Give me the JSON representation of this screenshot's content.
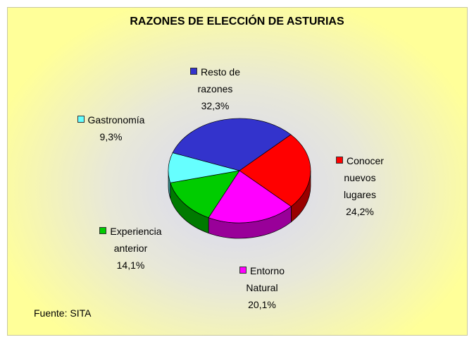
{
  "chart_data": {
    "type": "pie",
    "title": "RAZONES DE ELECCIÓN DE ASTURIAS",
    "categories": [
      "Resto de razones",
      "Conocer nuevos lugares",
      "Entorno Natural",
      "Experiencia anterior",
      "Gastronomía"
    ],
    "values": [
      32.3,
      24.2,
      20.1,
      14.1,
      9.3
    ],
    "value_labels": [
      "32,3%",
      "24,2%",
      "20,1%",
      "14,1%",
      "9,3%"
    ],
    "colors": [
      "#3333cc",
      "#ff0000",
      "#ff00ff",
      "#00cc00",
      "#66ffff"
    ],
    "source": "Fuente: SITA"
  }
}
